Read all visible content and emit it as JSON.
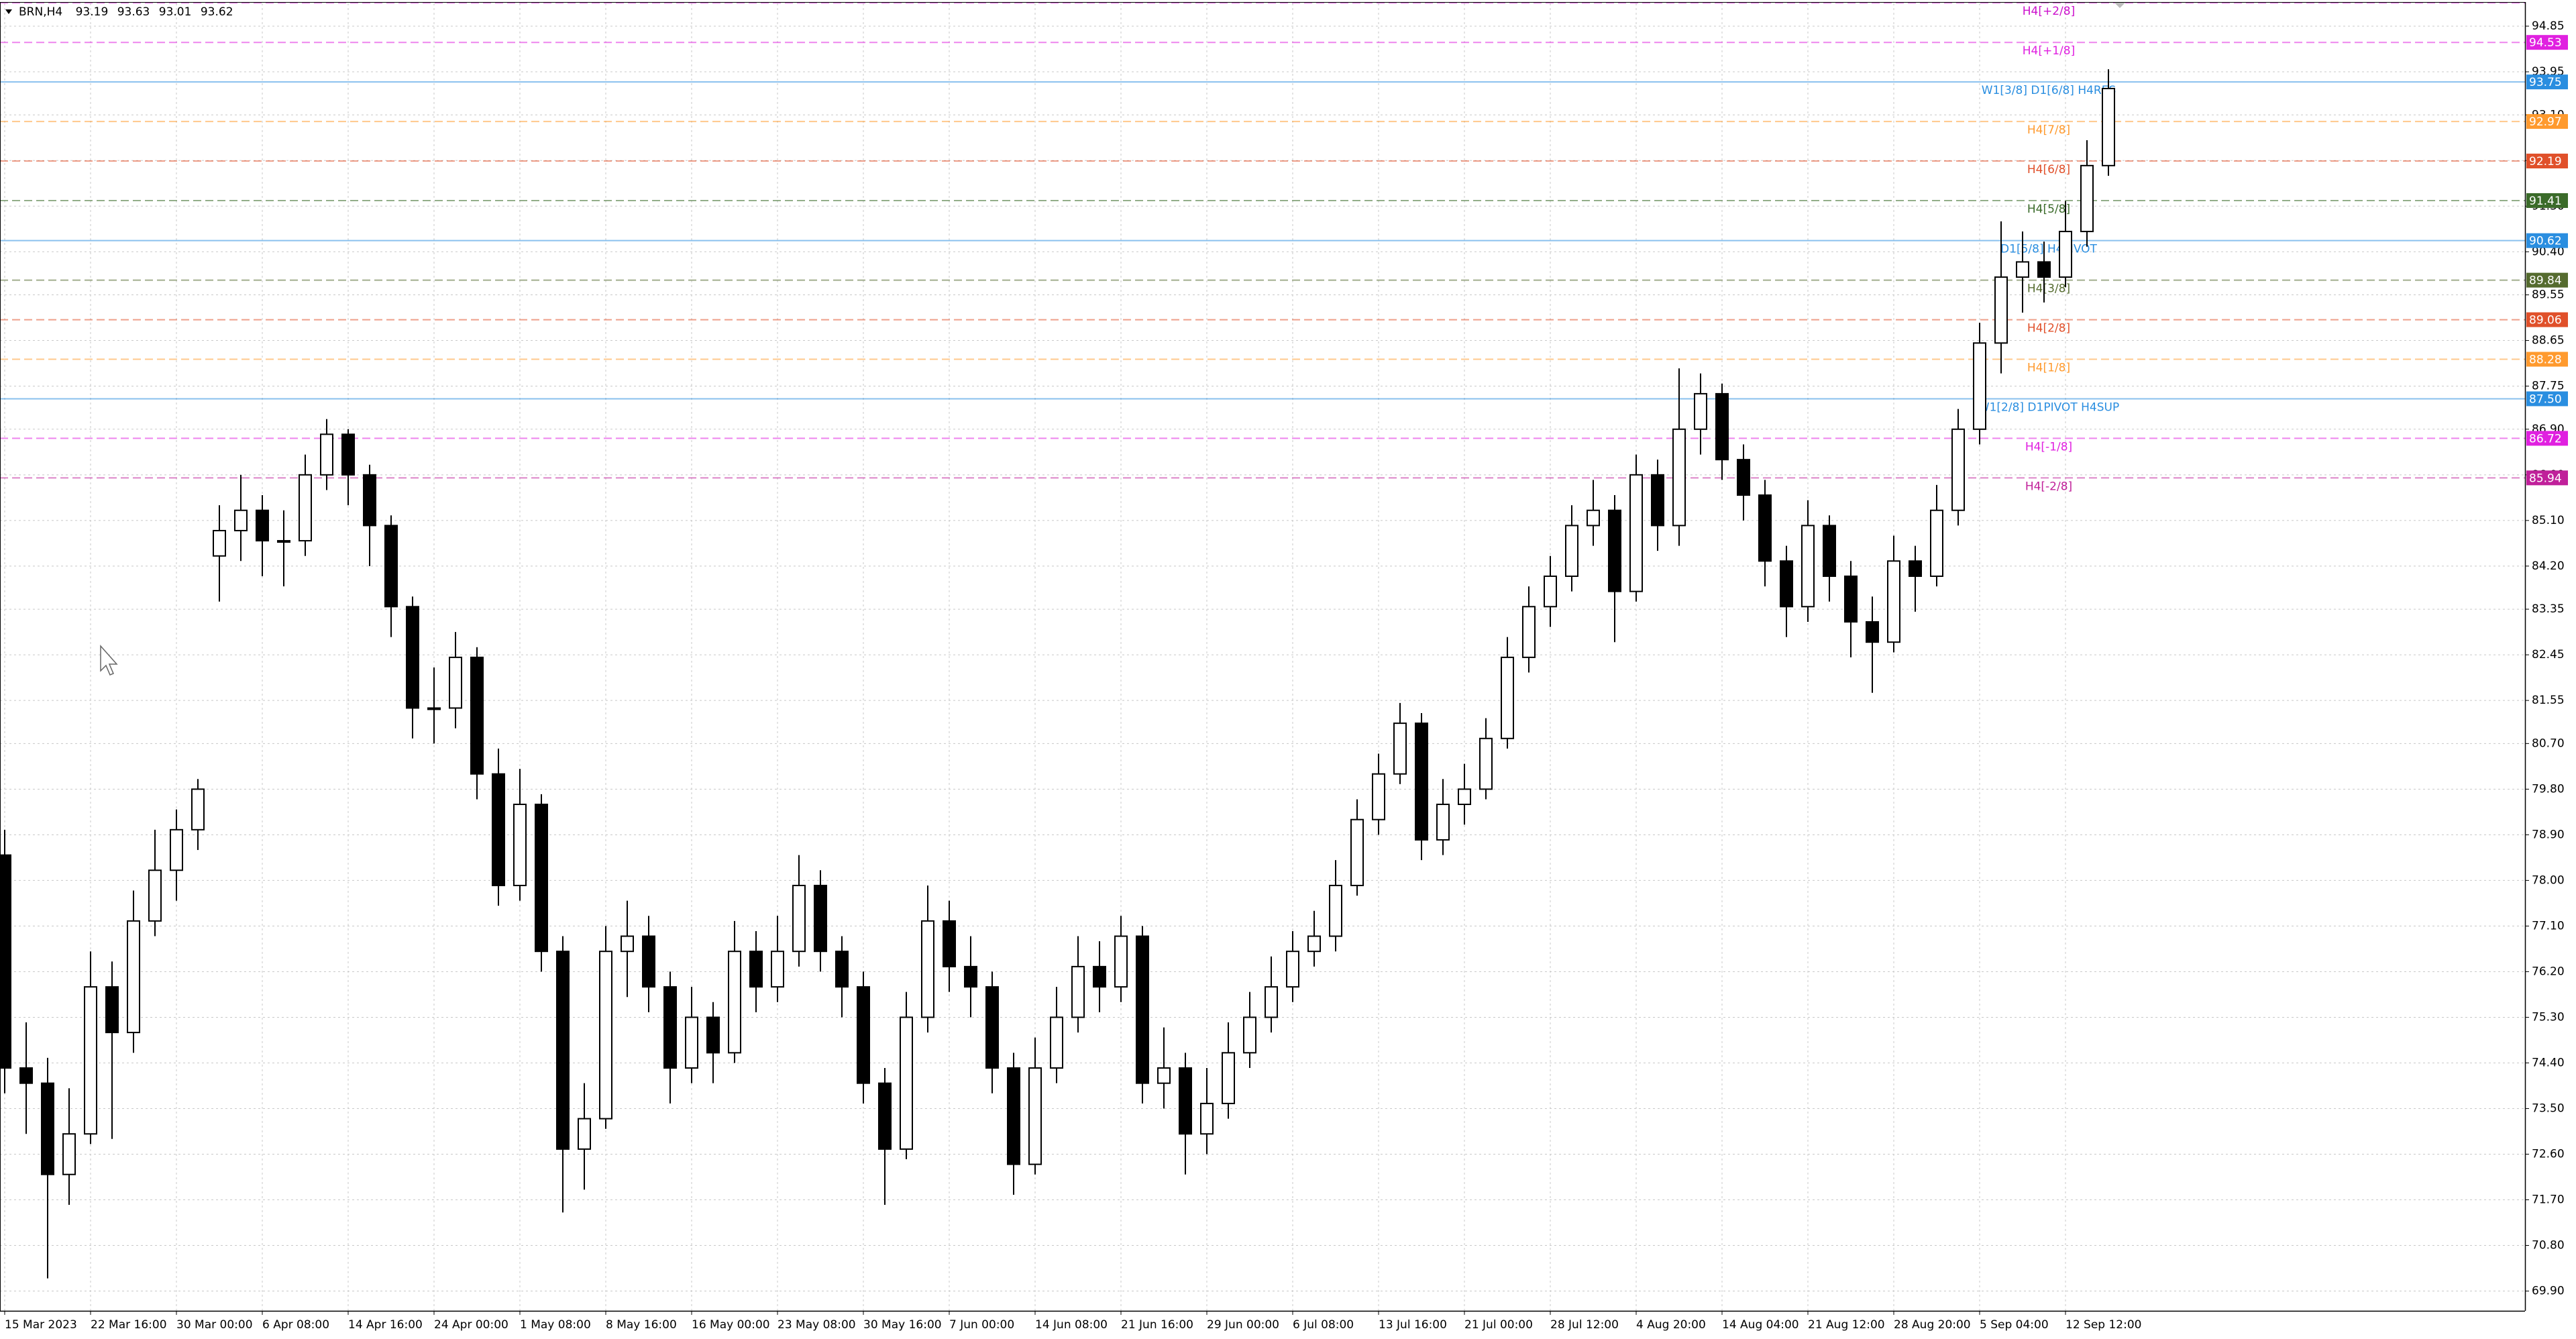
{
  "chart_data": {
    "type": "candlestick",
    "title": "BRN,H4",
    "header_values": [
      93.19,
      93.63,
      93.01,
      93.62
    ],
    "categories": [
      "15 Mar 2023",
      null,
      null,
      null,
      "22 Mar 16:00",
      null,
      null,
      null,
      "30 Mar 00:00",
      null,
      null,
      null,
      "6 Apr 08:00",
      null,
      null,
      null,
      "14 Apr 16:00",
      null,
      null,
      null,
      "24 Apr 00:00",
      null,
      null,
      null,
      "1 May 08:00",
      null,
      null,
      null,
      "8 May 16:00",
      null,
      null,
      null,
      "16 May 00:00",
      null,
      null,
      null,
      "23 May 08:00",
      null,
      null,
      null,
      "30 May 16:00",
      null,
      null,
      null,
      "7 Jun 00:00",
      null,
      null,
      null,
      "14 Jun 08:00",
      null,
      null,
      null,
      "21 Jun 16:00",
      null,
      null,
      null,
      "29 Jun 00:00",
      null,
      null,
      null,
      "6 Jul 08:00",
      null,
      null,
      null,
      "13 Jul 16:00",
      null,
      null,
      null,
      "21 Jul 00:00",
      null,
      null,
      null,
      "28 Jul 12:00",
      null,
      null,
      null,
      "4 Aug 20:00",
      null,
      null,
      null,
      "14 Aug 04:00",
      null,
      null,
      null,
      "21 Aug 12:00",
      null,
      null,
      null,
      "28 Aug 20:00",
      null,
      null,
      null,
      "5 Sep 04:00",
      null,
      null,
      null,
      "12 Sep 12:00",
      null,
      null
    ],
    "open": [
      78.5,
      74.3,
      74.0,
      72.2,
      73.0,
      75.9,
      75.0,
      77.2,
      78.2,
      79.0,
      84.4,
      84.9,
      85.3,
      84.7,
      84.7,
      86.0,
      86.8,
      86.0,
      85.0,
      83.4,
      81.4,
      81.4,
      82.4,
      80.1,
      77.9,
      79.5,
      76.6,
      72.7,
      73.3,
      76.6,
      76.9,
      75.9,
      74.3,
      75.3,
      74.6,
      76.6,
      75.9,
      76.6,
      77.9,
      76.6,
      75.9,
      74.0,
      72.7,
      75.3,
      77.2,
      76.3,
      75.9,
      74.3,
      72.4,
      74.3,
      75.3,
      76.3,
      75.9,
      76.9,
      74.0,
      74.3,
      73.0,
      73.6,
      74.6,
      75.3,
      75.9,
      76.6,
      76.9,
      77.9,
      79.2,
      80.1,
      81.1,
      78.8,
      79.5,
      79.8,
      80.8,
      82.4,
      83.4,
      84.0,
      85.0,
      85.3,
      83.7,
      86.0,
      85.0,
      86.9,
      87.6,
      86.3,
      85.6,
      84.3,
      83.4,
      85.0,
      84.0,
      83.1,
      82.7,
      84.3,
      84.0,
      85.3,
      86.9,
      88.6,
      89.9,
      90.2,
      89.9,
      90.8,
      92.1
    ],
    "high": [
      79.0,
      75.2,
      74.5,
      73.9,
      76.6,
      76.4,
      77.8,
      79.0,
      79.4,
      80.0,
      85.4,
      86.0,
      85.6,
      85.3,
      86.4,
      87.1,
      86.9,
      86.2,
      85.2,
      83.6,
      82.2,
      82.9,
      82.6,
      80.6,
      80.2,
      79.7,
      76.9,
      74.0,
      77.1,
      77.6,
      77.3,
      76.2,
      75.9,
      75.6,
      77.2,
      77.0,
      77.3,
      78.5,
      78.2,
      76.9,
      76.2,
      74.3,
      75.8,
      77.9,
      77.6,
      76.9,
      76.2,
      74.6,
      74.9,
      75.9,
      76.9,
      76.8,
      77.3,
      77.1,
      75.1,
      74.6,
      74.3,
      75.2,
      75.8,
      76.5,
      77.0,
      77.4,
      78.4,
      79.6,
      80.5,
      81.5,
      81.3,
      80.0,
      80.3,
      81.2,
      82.8,
      83.8,
      84.4,
      85.4,
      85.9,
      85.6,
      86.4,
      86.3,
      88.1,
      88.0,
      87.8,
      86.6,
      85.9,
      84.6,
      85.5,
      85.2,
      84.3,
      83.6,
      84.8,
      84.6,
      85.8,
      87.3,
      89.0,
      91.0,
      90.8,
      90.6,
      91.4,
      92.6,
      94.0
    ],
    "low": [
      73.8,
      73.0,
      70.15,
      71.6,
      72.8,
      72.9,
      74.6,
      76.9,
      77.6,
      78.6,
      83.5,
      84.3,
      84.0,
      83.8,
      84.4,
      85.7,
      85.4,
      84.2,
      82.8,
      80.8,
      80.7,
      81.0,
      79.6,
      77.5,
      77.6,
      76.2,
      71.45,
      71.9,
      73.1,
      75.7,
      75.4,
      73.6,
      74.0,
      74.0,
      74.4,
      75.4,
      75.6,
      76.3,
      76.2,
      75.3,
      73.6,
      71.6,
      72.5,
      75.0,
      75.8,
      75.3,
      73.8,
      71.8,
      72.2,
      74.0,
      75.0,
      75.4,
      75.6,
      73.6,
      73.5,
      72.2,
      72.6,
      73.3,
      74.3,
      75.0,
      75.6,
      76.3,
      76.6,
      77.7,
      78.9,
      79.9,
      78.4,
      78.5,
      79.1,
      79.6,
      80.6,
      82.1,
      83.0,
      83.7,
      84.6,
      82.7,
      83.5,
      84.5,
      84.6,
      86.4,
      85.9,
      85.1,
      83.8,
      82.8,
      83.1,
      83.5,
      82.4,
      81.7,
      82.5,
      83.3,
      83.8,
      85.0,
      86.6,
      88.0,
      89.2,
      89.4,
      89.7,
      90.5,
      91.9
    ],
    "close": [
      74.3,
      74.0,
      72.2,
      73.0,
      75.9,
      75.0,
      77.2,
      78.2,
      79.0,
      79.8,
      84.9,
      85.3,
      84.7,
      84.7,
      86.0,
      86.8,
      86.0,
      85.0,
      83.4,
      81.4,
      81.4,
      82.4,
      80.1,
      77.9,
      79.5,
      76.6,
      72.7,
      73.3,
      76.6,
      76.9,
      75.9,
      74.3,
      75.3,
      74.6,
      76.6,
      75.9,
      76.6,
      77.9,
      76.6,
      75.9,
      74.0,
      72.7,
      75.3,
      77.2,
      76.3,
      75.9,
      74.3,
      72.4,
      74.3,
      75.3,
      76.3,
      75.9,
      76.9,
      74.0,
      74.3,
      73.0,
      73.6,
      74.6,
      75.3,
      75.9,
      76.6,
      76.9,
      77.9,
      79.2,
      80.1,
      81.1,
      78.8,
      79.5,
      79.8,
      80.8,
      82.4,
      83.4,
      84.0,
      85.0,
      85.3,
      83.7,
      86.0,
      85.0,
      86.9,
      87.6,
      86.3,
      85.6,
      84.3,
      83.4,
      85.0,
      84.0,
      83.1,
      82.7,
      84.3,
      84.0,
      85.3,
      86.9,
      88.6,
      89.9,
      90.2,
      89.9,
      90.8,
      92.1,
      93.62
    ],
    "up_color": "#ffffff",
    "down_color": "#000000",
    "ylim": [
      69.51,
      95.3
    ],
    "yticks": [
      94.85,
      93.95,
      {
        "value": 93.1,
        "label": "93.10"
      },
      {
        "value": 92.2,
        "label": "92.20"
      },
      {
        "value": 91.3,
        "label": "91.30"
      },
      {
        "value": 90.4,
        "label": "90.40"
      },
      89.55,
      88.65,
      87.75,
      {
        "value": 86.9,
        "label": "86.90"
      },
      {
        "value": 86,
        "label": "86.00"
      },
      {
        "value": 85.1,
        "label": "85.10"
      },
      {
        "value": 84.2,
        "label": "84.20"
      },
      83.35,
      82.45,
      81.55,
      {
        "value": 80.7,
        "label": "80.70"
      },
      {
        "value": 79.8,
        "label": "79.80"
      },
      {
        "value": 78.9,
        "label": "78.90"
      },
      {
        "value": 78,
        "label": "78.00"
      },
      {
        "value": 77.1,
        "label": "77.10"
      },
      {
        "value": 76.2,
        "label": "76.20"
      },
      {
        "value": 75.3,
        "label": "75.30"
      },
      {
        "value": 74.4,
        "label": "74.40"
      },
      {
        "value": 73.5,
        "label": "73.50"
      },
      {
        "value": 72.6,
        "label": "72.60"
      },
      {
        "value": 71.7,
        "label": "71.70"
      },
      {
        "value": 70.8,
        "label": "70.80"
      },
      {
        "value": 69.9,
        "label": "69.90"
      }
    ],
    "grid": true,
    "levels": {
      "names": [
        "H4[+2/8]",
        "H4[+1/8]",
        "W1[3/8] D1[6/8] H4RES",
        "H4[7/8]",
        "H4[6/8]",
        "H4[5/8]",
        "D1[5/8] H4PIVOT",
        "H4[3/8]",
        "H4[2/8]",
        "H4[1/8]",
        "W1[2/8] D1PIVOT H4SUP",
        "H4[-1/8]",
        "H4[-2/8]"
      ],
      "values": [
        95.31,
        94.53,
        93.75,
        92.97,
        92.19,
        91.41,
        90.62,
        89.84,
        89.06,
        88.28,
        87.5,
        86.72,
        85.94
      ],
      "value_labels": [
        null,
        "94.53",
        "93.75",
        "92.97",
        "92.19",
        "91.41",
        "90.62",
        "89.84",
        "89.06",
        "88.28",
        "87.50",
        "86.72",
        "85.94"
      ],
      "colors": [
        "#cc10cc",
        "#e020e0",
        "#2a8ee0",
        "#ff9a2e",
        "#e0502a",
        "#3b6b2a",
        "#2a8ee0",
        "#556b2f",
        "#e0502a",
        "#ff9a2e",
        "#2a8ee0",
        "#e020e0",
        "#c0209a"
      ],
      "dashed": [
        true,
        true,
        false,
        true,
        true,
        true,
        false,
        true,
        true,
        true,
        false,
        true,
        true
      ]
    }
  }
}
